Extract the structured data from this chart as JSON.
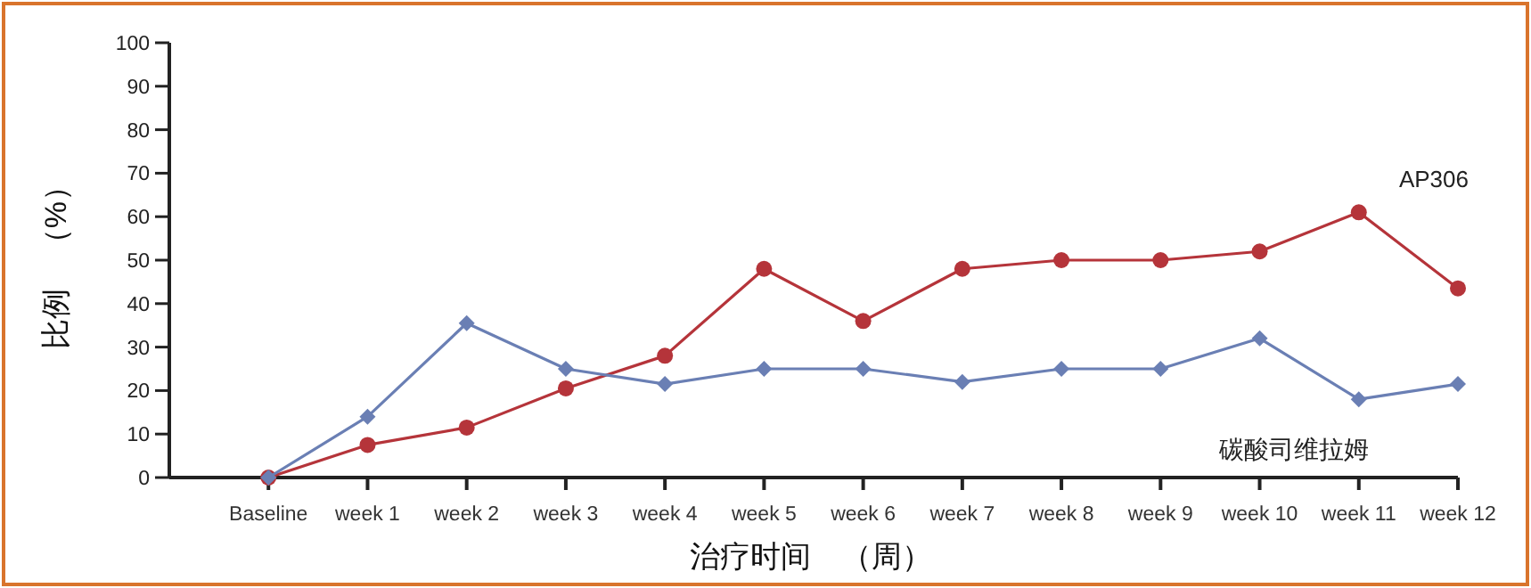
{
  "chart_data": {
    "type": "line",
    "xlabel": "治疗时间　（周）",
    "ylabel": "比例　（%）",
    "categories": [
      "Baseline",
      "week 1",
      "week 2",
      "week 3",
      "week 4",
      "week 5",
      "week 6",
      "week 7",
      "week 8",
      "week 9",
      "week 10",
      "week 11",
      "week 12"
    ],
    "ylim": [
      0,
      100
    ],
    "yticks": [
      0,
      10,
      20,
      30,
      40,
      50,
      60,
      70,
      80,
      90,
      100
    ],
    "series": [
      {
        "name": "AP306",
        "color": "#b5343a",
        "marker": "circle",
        "values": [
          0,
          7.5,
          11.5,
          20.5,
          28,
          48,
          36,
          48,
          50,
          50,
          52,
          61,
          43.5
        ]
      },
      {
        "name": "碳酸司维拉姆",
        "color": "#6a7fb4",
        "marker": "diamond",
        "values": [
          0,
          14,
          35.5,
          25,
          21.5,
          25,
          25,
          22,
          25,
          25,
          32,
          18,
          21.5
        ]
      }
    ]
  }
}
